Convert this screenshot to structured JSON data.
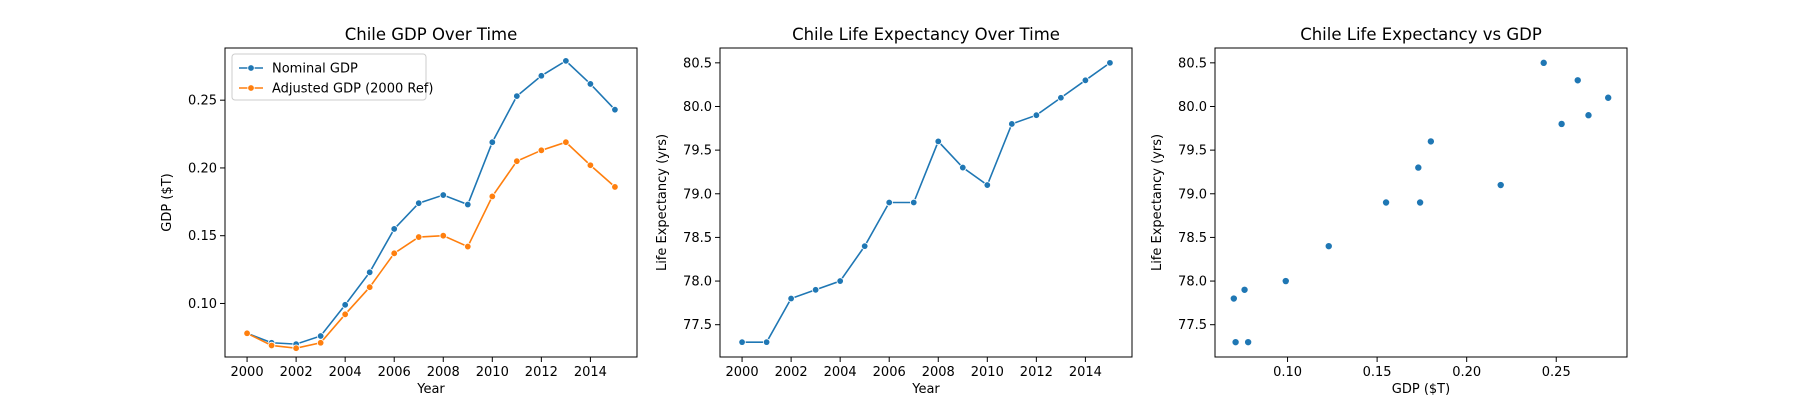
{
  "colors": {
    "nominal": "#1f77b4",
    "adjusted": "#ff7f0e",
    "scatter": "#1f77b4"
  },
  "chart_data": [
    {
      "type": "line",
      "title": "Chile GDP Over Time",
      "xlabel": "Year",
      "ylabel": "GDP ($T)",
      "xlim": [
        1999.1,
        2015.9
      ],
      "ylim": [
        0.0605,
        0.2885
      ],
      "xticks": [
        2000,
        2002,
        2004,
        2006,
        2008,
        2010,
        2012,
        2014
      ],
      "xtick_labels": [
        "2000",
        "2002",
        "2004",
        "2006",
        "2008",
        "2010",
        "2012",
        "2014"
      ],
      "yticks": [
        0.1,
        0.15,
        0.2,
        0.25
      ],
      "ytick_labels": [
        "0.10",
        "0.15",
        "0.20",
        "0.25"
      ],
      "legend": "upper-left",
      "grid": false,
      "x": [
        2000,
        2001,
        2002,
        2003,
        2004,
        2005,
        2006,
        2007,
        2008,
        2009,
        2010,
        2011,
        2012,
        2013,
        2014,
        2015
      ],
      "series": [
        {
          "name": "Nominal GDP",
          "color": "#1f77b4",
          "values": [
            0.078,
            0.071,
            0.07,
            0.076,
            0.099,
            0.123,
            0.155,
            0.174,
            0.18,
            0.173,
            0.219,
            0.253,
            0.268,
            0.279,
            0.262,
            0.243
          ]
        },
        {
          "name": "Adjusted GDP (2000 Ref)",
          "color": "#ff7f0e",
          "values": [
            0.078,
            0.069,
            0.067,
            0.071,
            0.092,
            0.112,
            0.137,
            0.149,
            0.15,
            0.142,
            0.179,
            0.205,
            0.213,
            0.219,
            0.202,
            0.186
          ]
        }
      ]
    },
    {
      "type": "line",
      "title": "Chile Life Expectancy Over Time",
      "xlabel": "Year",
      "ylabel": "Life Expectancy (yrs)",
      "xlim": [
        1999.1,
        2015.9
      ],
      "ylim": [
        77.13,
        80.67
      ],
      "xticks": [
        2000,
        2002,
        2004,
        2006,
        2008,
        2010,
        2012,
        2014
      ],
      "xtick_labels": [
        "2000",
        "2002",
        "2004",
        "2006",
        "2008",
        "2010",
        "2012",
        "2014"
      ],
      "yticks": [
        77.5,
        78.0,
        78.5,
        79.0,
        79.5,
        80.0,
        80.5
      ],
      "ytick_labels": [
        "77.5",
        "78.0",
        "78.5",
        "79.0",
        "79.5",
        "80.0",
        "80.5"
      ],
      "grid": false,
      "x": [
        2000,
        2001,
        2002,
        2003,
        2004,
        2005,
        2006,
        2007,
        2008,
        2009,
        2010,
        2011,
        2012,
        2013,
        2014,
        2015
      ],
      "series": [
        {
          "color": "#1f77b4",
          "values": [
            77.3,
            77.3,
            77.8,
            77.9,
            78.0,
            78.4,
            78.9,
            78.9,
            79.6,
            79.3,
            79.1,
            79.8,
            79.9,
            80.1,
            80.3,
            80.5
          ]
        }
      ]
    },
    {
      "type": "scatter",
      "title": "Chile Life Expectancy vs GDP",
      "xlabel": "GDP ($T)",
      "ylabel": "Life Expectancy (yrs)",
      "xlim": [
        0.0595,
        0.2895
      ],
      "ylim": [
        77.13,
        80.67
      ],
      "xticks": [
        0.1,
        0.15,
        0.2,
        0.25
      ],
      "xtick_labels": [
        "0.10",
        "0.15",
        "0.20",
        "0.25"
      ],
      "yticks": [
        77.5,
        78.0,
        78.5,
        79.0,
        79.5,
        80.0,
        80.5
      ],
      "ytick_labels": [
        "77.5",
        "78.0",
        "78.5",
        "79.0",
        "79.5",
        "80.0",
        "80.5"
      ],
      "grid": false,
      "points": [
        {
          "x": 0.078,
          "y": 77.3
        },
        {
          "x": 0.071,
          "y": 77.3
        },
        {
          "x": 0.07,
          "y": 77.8
        },
        {
          "x": 0.076,
          "y": 77.9
        },
        {
          "x": 0.099,
          "y": 78.0
        },
        {
          "x": 0.123,
          "y": 78.4
        },
        {
          "x": 0.155,
          "y": 78.9
        },
        {
          "x": 0.174,
          "y": 78.9
        },
        {
          "x": 0.18,
          "y": 79.6
        },
        {
          "x": 0.173,
          "y": 79.3
        },
        {
          "x": 0.219,
          "y": 79.1
        },
        {
          "x": 0.253,
          "y": 79.8
        },
        {
          "x": 0.268,
          "y": 79.9
        },
        {
          "x": 0.279,
          "y": 80.1
        },
        {
          "x": 0.262,
          "y": 80.3
        },
        {
          "x": 0.243,
          "y": 80.5
        }
      ]
    }
  ]
}
